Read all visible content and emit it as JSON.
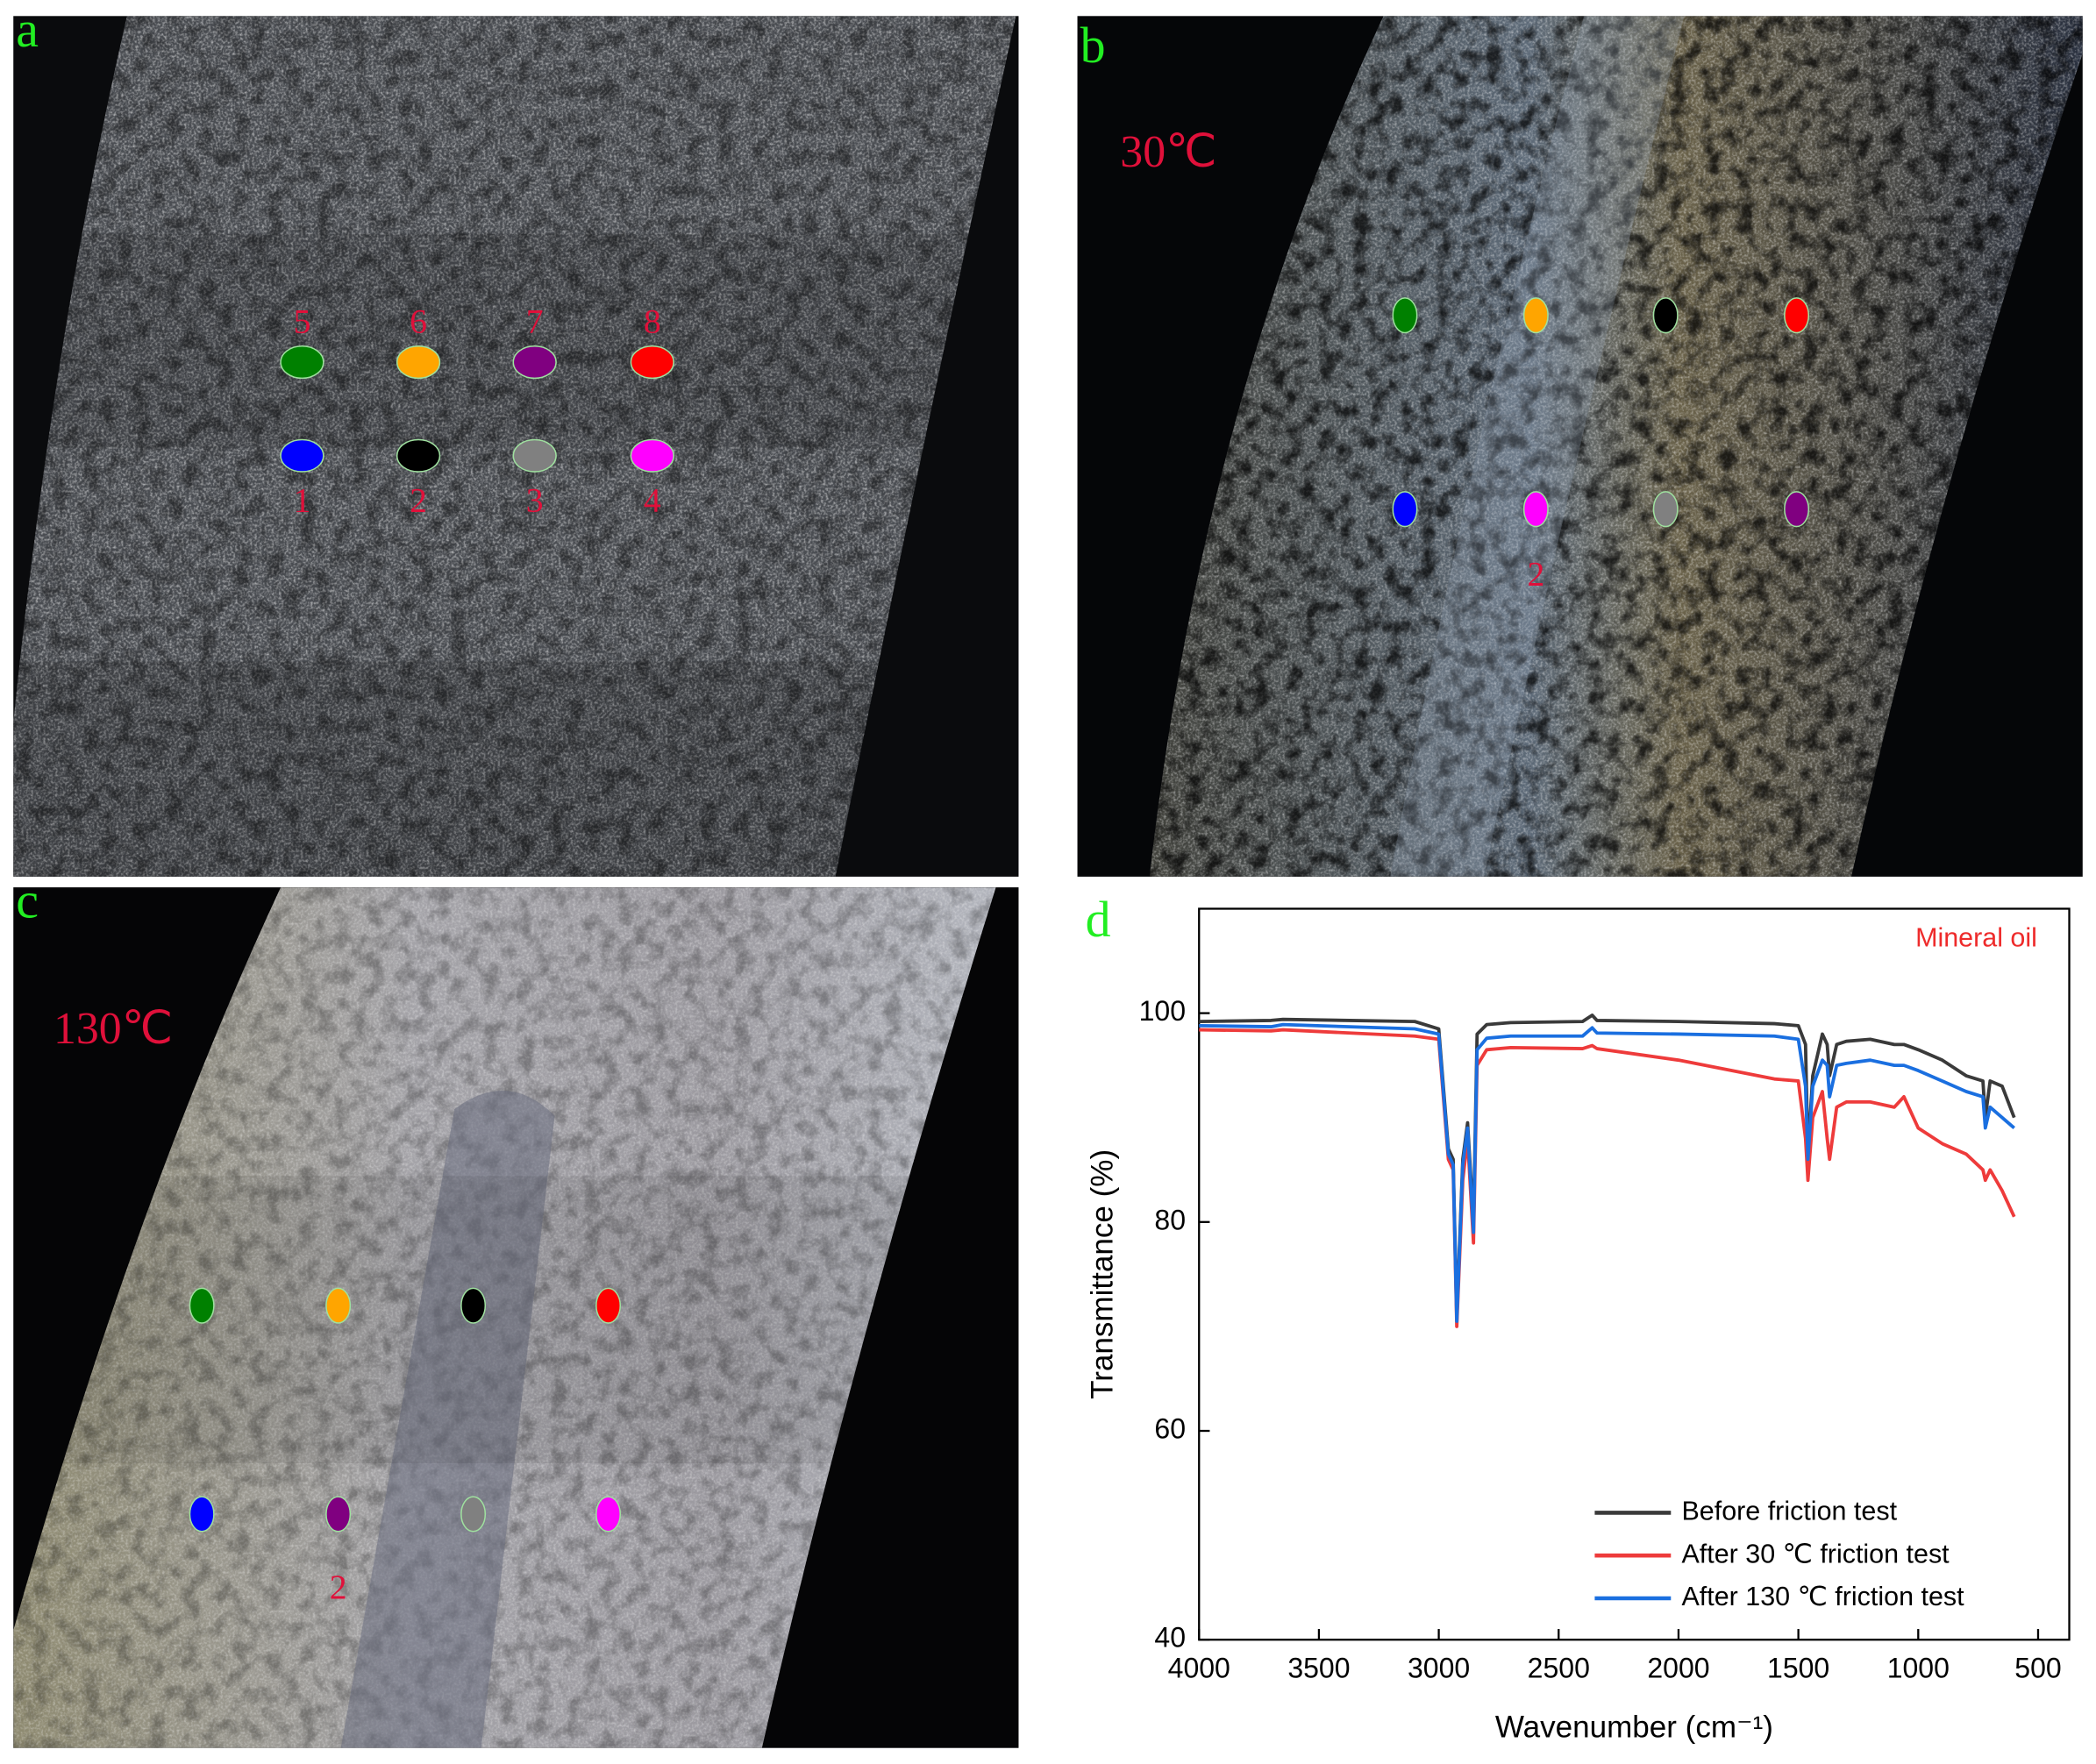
{
  "panels": [
    {
      "label": "a",
      "spots": [
        {
          "label": "5",
          "color": "#008000"
        },
        {
          "label": "6",
          "color": "#ffa500"
        },
        {
          "label": "7",
          "color": "#800080"
        },
        {
          "label": "8",
          "color": "#ff0000"
        },
        {
          "label": "1",
          "color": "#0000ff"
        },
        {
          "label": "2",
          "color": "#000000"
        },
        {
          "label": "3",
          "color": "#808080"
        },
        {
          "label": "4",
          "color": "#ff00ff"
        }
      ]
    },
    {
      "label": "b",
      "temperature": "30℃",
      "spot_label": "2",
      "spots": [
        {
          "color": "#008000"
        },
        {
          "color": "#ffa500"
        },
        {
          "color": "#000000"
        },
        {
          "color": "#ff0000"
        },
        {
          "color": "#0000ff"
        },
        {
          "color": "#ff00ff"
        },
        {
          "color": "#808080"
        },
        {
          "color": "#800080"
        }
      ]
    },
    {
      "label": "c",
      "temperature": "130℃",
      "spot_label": "2",
      "spots": [
        {
          "color": "#008000"
        },
        {
          "color": "#ffa500"
        },
        {
          "color": "#000000"
        },
        {
          "color": "#ff0000"
        },
        {
          "color": "#0000ff"
        },
        {
          "color": "#800080"
        },
        {
          "color": "#808080"
        },
        {
          "color": "#ff00ff"
        }
      ]
    }
  ],
  "chart_data": {
    "type": "line",
    "panel_label": "d",
    "annotation": "Mineral oil",
    "xlabel": "Wavenumber (cm⁻¹)",
    "ylabel": "Transmittance (%)",
    "xlim": [
      4000,
      370
    ],
    "xticks": [
      4000,
      3500,
      3000,
      2500,
      2000,
      1500,
      1000,
      500
    ],
    "ylim": [
      40,
      110
    ],
    "yticks": [
      40,
      60,
      80,
      100
    ],
    "legend": "lower right",
    "x": [
      4000,
      3700,
      3650,
      3100,
      3000,
      2960,
      2940,
      2925,
      2900,
      2880,
      2855,
      2840,
      2800,
      2700,
      2400,
      2360,
      2340,
      2000,
      1600,
      1500,
      1470,
      1460,
      1440,
      1400,
      1380,
      1370,
      1340,
      1300,
      1200,
      1100,
      1060,
      1000,
      900,
      800,
      730,
      720,
      700,
      650,
      600
    ],
    "series": [
      {
        "name": "Before friction test",
        "color": "#3a3a3a",
        "values": [
          99.2,
          99.3,
          99.4,
          99.2,
          98.5,
          87,
          86,
          71,
          86,
          89.5,
          80,
          98,
          98.9,
          99.1,
          99.2,
          99.8,
          99.3,
          99.2,
          99.0,
          98.8,
          97,
          86.5,
          94,
          98,
          97,
          94,
          97,
          97.3,
          97.5,
          97,
          97,
          96.5,
          95.5,
          94,
          93.5,
          90,
          93.5,
          93,
          90
        ]
      },
      {
        "name": "After 30 ℃ friction test",
        "color": "#ee3b3b",
        "values": [
          98.4,
          98.3,
          98.4,
          97.8,
          97.5,
          86,
          85,
          70,
          84,
          88,
          78,
          95,
          96.5,
          96.7,
          96.6,
          96.9,
          96.6,
          95.5,
          93.7,
          93.5,
          88,
          84,
          90,
          92.5,
          88,
          86,
          91,
          91.5,
          91.5,
          91,
          92,
          89,
          87.5,
          86.5,
          85,
          84,
          85,
          83,
          80.5
        ]
      },
      {
        "name": "After 130 ℃ friction test",
        "color": "#1a6fe0",
        "values": [
          98.8,
          98.7,
          98.9,
          98.5,
          98,
          86.5,
          85.5,
          70.5,
          85.5,
          89,
          79,
          96.5,
          97.6,
          97.8,
          97.8,
          98.6,
          98.1,
          98,
          97.8,
          97.5,
          93,
          86,
          93,
          95.5,
          95,
          92,
          95,
          95.2,
          95.5,
          95,
          95,
          94.5,
          93.5,
          92.5,
          92,
          89,
          91,
          90,
          89
        ]
      }
    ]
  }
}
